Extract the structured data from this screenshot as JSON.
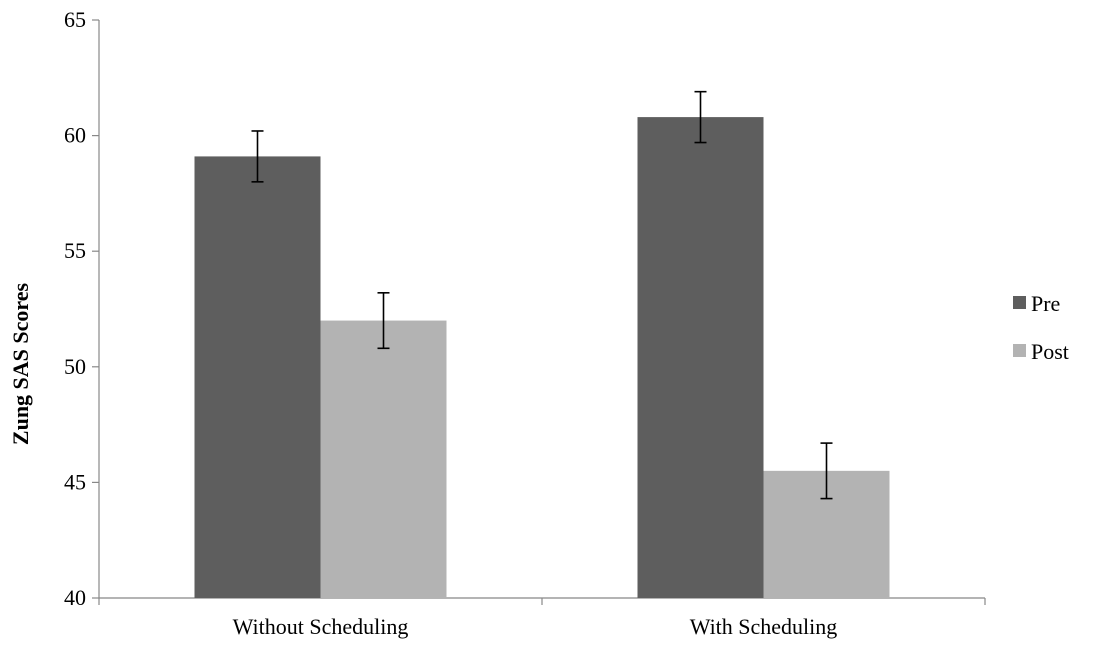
{
  "chart_data": {
    "type": "bar",
    "title": "",
    "xlabel": "",
    "ylabel": "Zung SAS Scores",
    "ylim": [
      40,
      65
    ],
    "yticks": [
      40,
      45,
      50,
      55,
      60,
      65
    ],
    "categories": [
      "Without Scheduling",
      "With Scheduling"
    ],
    "series": [
      {
        "name": "Pre",
        "values": [
          59.1,
          60.8
        ],
        "errors": [
          1.1,
          1.1
        ],
        "color": "#5e5e5e"
      },
      {
        "name": "Post",
        "values": [
          52.0,
          45.5
        ],
        "errors": [
          1.2,
          1.2
        ],
        "color": "#b3b3b3"
      }
    ],
    "grid": false,
    "legend_position": "right"
  }
}
